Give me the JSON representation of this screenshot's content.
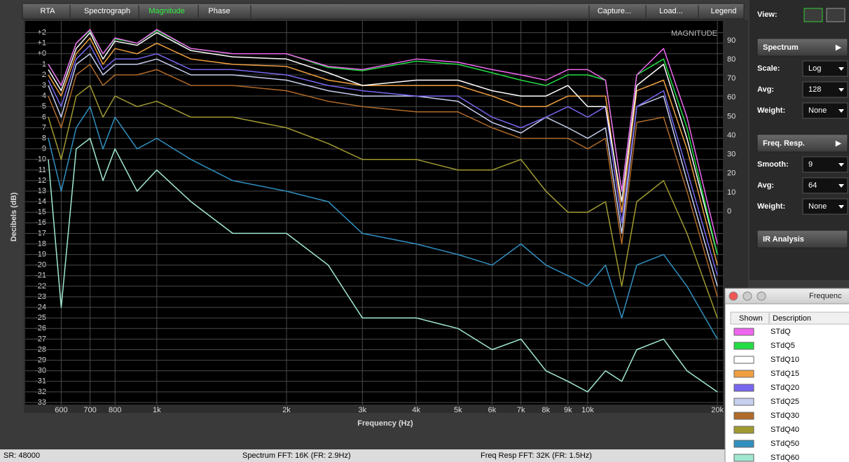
{
  "tabs": [
    "RTA",
    "Spectrograph",
    "Magnitude",
    "Phase"
  ],
  "buttons": [
    "Capture...",
    "Load...",
    "Legend"
  ],
  "sidebar": {
    "view_label": "View:",
    "sections": [
      {
        "title": "Spectrum",
        "settings": [
          {
            "label": "Scale:",
            "value": "Log"
          },
          {
            "label": "Avg:",
            "value": "128"
          },
          {
            "label": "Weight:",
            "value": "None"
          }
        ]
      },
      {
        "title": "Freq. Resp.",
        "settings": [
          {
            "label": "Smooth:",
            "value": "9"
          },
          {
            "label": "Avg:",
            "value": "64"
          },
          {
            "label": "Weight:",
            "value": "None"
          }
        ]
      },
      {
        "title": "IR Analysis",
        "settings": []
      }
    ]
  },
  "legend_window": {
    "title": "Frequenc",
    "columns": [
      "Shown",
      "Description"
    ]
  },
  "status_bar": [
    "SR: 48000",
    "Spectrum FFT: 16K (FR: 2.9Hz)",
    "Freq Resp FFT: 32K (FR: 1.5Hz)"
  ],
  "chart_data": {
    "type": "line",
    "title": "MAGNITUDE",
    "x_label": "Frequency (Hz)",
    "y_label": "Decibels (dB)",
    "log_x": true,
    "grid": true,
    "xlim": [
      495,
      20600
    ],
    "xticks": [
      600,
      700,
      800,
      {
        "value": 1000,
        "label": "1k"
      },
      {
        "value": 2000,
        "label": "2k"
      },
      {
        "value": 3000,
        "label": "3k"
      },
      {
        "value": 4000,
        "label": "4k"
      },
      {
        "value": 5000,
        "label": "5k"
      },
      {
        "value": 6000,
        "label": "6k"
      },
      {
        "value": 7000,
        "label": "7k"
      },
      {
        "value": 8000,
        "label": "8k"
      },
      {
        "value": 9000,
        "label": "9k"
      },
      {
        "value": 10000,
        "label": "10k"
      },
      {
        "value": 20000,
        "label": "20k"
      }
    ],
    "ylim": [
      -33.2,
      3.1
    ],
    "yticks": [
      {
        "value": 2,
        "label": "+2"
      },
      {
        "value": 1,
        "label": "+1"
      },
      {
        "value": 0,
        "label": "+0"
      },
      -1,
      -2,
      -3,
      -4,
      -5,
      -6,
      -7,
      -8,
      -9,
      -10,
      -11,
      -12,
      -13,
      -14,
      -15,
      -16,
      -17,
      -18,
      -19,
      -20,
      -21,
      -22,
      -23,
      -24,
      -25,
      -26,
      -27,
      -28,
      -29,
      -30,
      -31,
      -32,
      -33
    ],
    "y2lim": [
      -101.8,
      100.3
    ],
    "y2ticks": [
      0,
      10,
      20,
      30,
      40,
      50,
      60,
      70,
      80,
      90
    ],
    "x": [
      560,
      600,
      650,
      700,
      750,
      800,
      900,
      1000,
      1200,
      1500,
      2000,
      2500,
      3000,
      4000,
      5000,
      6000,
      7000,
      8000,
      9000,
      10000,
      11000,
      12000,
      13000,
      15000,
      17000,
      20000
    ],
    "series": [
      {
        "name": "STdQ",
        "color": "#ee66ee",
        "values": [
          -1,
          -3,
          1,
          2.3,
          0,
          1.5,
          1,
          2.3,
          0.5,
          0,
          0,
          -1.2,
          -1.5,
          -0.5,
          -0.8,
          -1.5,
          -2,
          -2.5,
          -1.5,
          -1.5,
          -2.5,
          -13,
          -2,
          0.5,
          -6,
          -18
        ]
      },
      {
        "name": "STdQ5",
        "color": "#22dd44",
        "values": [
          -1,
          -3,
          1,
          2.2,
          0,
          1.4,
          1,
          2.2,
          0.5,
          0,
          0,
          -1.3,
          -1.6,
          -0.7,
          -1,
          -1.8,
          -2.5,
          -3,
          -2,
          -2,
          -2.5,
          -13,
          -2,
          -0.5,
          -7,
          -19
        ]
      },
      {
        "name": "STdQ10",
        "color": "#ffffff",
        "values": [
          -1.5,
          -3.5,
          0.5,
          2,
          -0.5,
          1.2,
          0.8,
          2,
          0.3,
          -0.3,
          -0.5,
          -1.8,
          -3,
          -2.5,
          -2.5,
          -3.5,
          -4,
          -4,
          -3,
          -5,
          -5,
          -14,
          -3,
          -1,
          -8,
          -19
        ]
      },
      {
        "name": "STdQ15",
        "color": "#f0a040",
        "values": [
          -2,
          -4,
          0,
          1.5,
          -1,
          0.5,
          0,
          1,
          -0.5,
          -1,
          -1.2,
          -2.5,
          -3,
          -3,
          -3,
          -4,
          -5,
          -5,
          -4,
          -4,
          -4,
          -15,
          -3.5,
          -2.5,
          -9,
          -20
        ]
      },
      {
        "name": "STdQ20",
        "color": "#7766ee",
        "values": [
          -2.5,
          -5,
          -0.5,
          0.8,
          -1.5,
          -0.5,
          -0.5,
          0,
          -1.5,
          -1.5,
          -2,
          -3,
          -3.5,
          -4,
          -4,
          -6,
          -7,
          -6,
          -5,
          -6,
          -5,
          -16,
          -5,
          -3.5,
          -11,
          -21
        ]
      },
      {
        "name": "STdQ25",
        "color": "#c8d0f0",
        "values": [
          -3,
          -6,
          -1,
          0,
          -2,
          -1,
          -1,
          -0.5,
          -2,
          -2,
          -2.5,
          -3.5,
          -4,
          -4,
          -4.5,
          -6.5,
          -7.5,
          -6,
          -7,
          -8,
          -7,
          -17,
          -5,
          -4,
          -12,
          -22
        ]
      },
      {
        "name": "STdQ30",
        "color": "#b06a2a",
        "values": [
          -4,
          -7,
          -2,
          -1,
          -3,
          -2,
          -2,
          -1.5,
          -3,
          -3,
          -3.5,
          -4.5,
          -5,
          -5.5,
          -5.5,
          -7,
          -8,
          -8,
          -8,
          -9,
          -8,
          -18,
          -6.5,
          -6,
          -13,
          -23
        ]
      },
      {
        "name": "STdQ40",
        "color": "#a09a30",
        "values": [
          -6,
          -10,
          -4,
          -3,
          -6,
          -4,
          -5,
          -4.5,
          -6,
          -6,
          -7,
          -8.5,
          -10,
          -10,
          -11,
          -11,
          -10,
          -13,
          -15,
          -15,
          -14,
          -22,
          -14,
          -12,
          -17,
          -25
        ]
      },
      {
        "name": "STdQ50",
        "color": "#3090c0",
        "values": [
          -8,
          -13,
          -7,
          -5,
          -9,
          -6,
          -9,
          -8,
          -10,
          -12,
          -13,
          -14,
          -17,
          -18,
          -19,
          -20,
          -18,
          -20,
          -21,
          -22,
          -20,
          -25,
          -20,
          -19,
          -22,
          -27
        ]
      },
      {
        "name": "STdQ60",
        "color": "#a0e8d0",
        "values": [
          -10,
          -24,
          -9,
          -8,
          -12,
          -9,
          -13,
          -11,
          -14,
          -17,
          -17,
          -20,
          -25,
          -25,
          -26,
          -28,
          -27,
          -30,
          -31,
          -32,
          -30,
          -31,
          -28,
          -27,
          -30,
          -32
        ]
      }
    ]
  }
}
